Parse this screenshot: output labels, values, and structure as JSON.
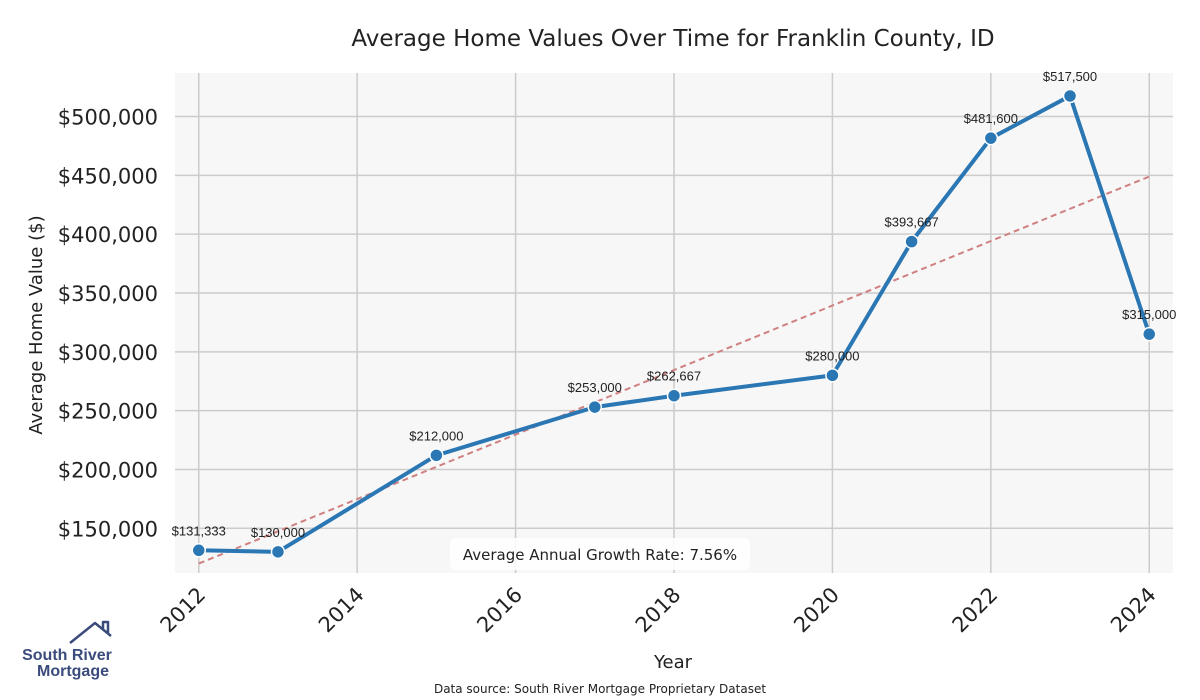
{
  "chart_data": {
    "type": "line",
    "title": "Average Home Values Over Time for Franklin County, ID",
    "xlabel": "Year",
    "ylabel": "Average Home Value ($)",
    "xlim": [
      2011.7,
      2024.3
    ],
    "ylim": [
      112000,
      537000
    ],
    "x_ticks": [
      2012,
      2014,
      2016,
      2018,
      2020,
      2022,
      2024
    ],
    "y_ticks": [
      150000,
      200000,
      250000,
      300000,
      350000,
      400000,
      450000,
      500000
    ],
    "y_tick_labels": [
      "$150,000",
      "$200,000",
      "$250,000",
      "$300,000",
      "$350,000",
      "$400,000",
      "$450,000",
      "$500,000"
    ],
    "grid": true,
    "series": [
      {
        "color": "#2a77b4",
        "x": [
          2012,
          2013,
          2015,
          2017,
          2018,
          2020,
          2021,
          2022,
          2023,
          2024
        ],
        "y": [
          131333,
          130000,
          212000,
          253000,
          262667,
          280000,
          393667,
          481600,
          517500,
          315000
        ],
        "labels": [
          "$131,333",
          "$130,000",
          "$212,000",
          "$253,000",
          "$262,667",
          "$280,000",
          "$393,667",
          "$481,600",
          "$517,500",
          "$315,000"
        ]
      }
    ],
    "trendline": {
      "color": "#d08080",
      "style": "dashed",
      "x": [
        2012,
        2024
      ],
      "y": [
        120000,
        449000
      ]
    },
    "annotation": "Average Annual Growth Rate: 7.56%",
    "source": "Data source: South River Mortgage Proprietary Dataset"
  },
  "logo": {
    "line1": "South River",
    "line2": "Mortgage",
    "color": "#3a4b7c"
  },
  "colors": {
    "plot_bg": "#f7f7f7",
    "grid": "#cccccc",
    "line": "#2a77b4",
    "trend": "#d08080"
  }
}
